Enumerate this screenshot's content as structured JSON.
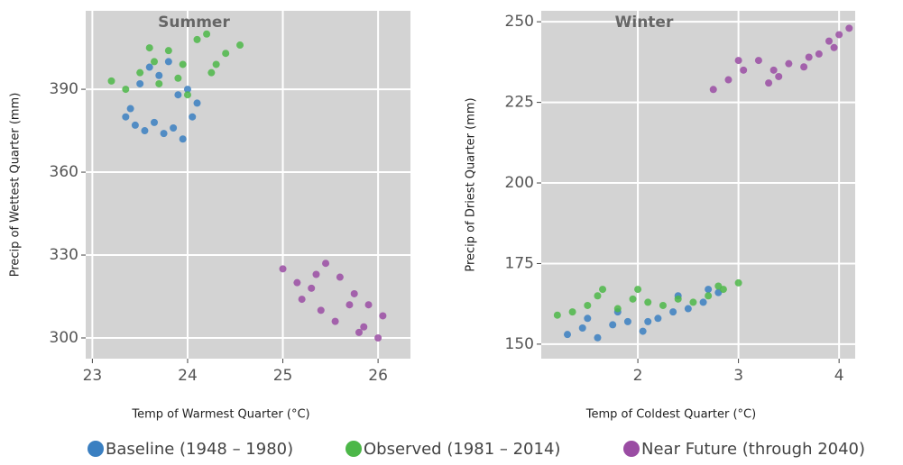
{
  "chart_data": [
    {
      "type": "scatter",
      "title": "Summer",
      "x_label": "Temp of Warmest Quarter (°C)",
      "y_label": "Precip of Wettest Quarter (mm)",
      "xlim": [
        22.93,
        26.34
      ],
      "ylim": [
        292.5,
        418.4
      ],
      "xticks": [
        23,
        24,
        25,
        26
      ],
      "yticks": [
        300,
        330,
        360,
        390
      ],
      "grid": true,
      "series": [
        {
          "name": "Baseline (1948 – 1980)",
          "color": "#3a7fc1",
          "x": [
            23.35,
            23.45,
            23.55,
            23.65,
            23.75,
            23.85,
            23.95,
            24.05,
            23.5,
            23.7,
            23.9,
            24.1,
            23.6,
            23.8,
            23.4,
            24.0
          ],
          "y": [
            380,
            377,
            375,
            378,
            374,
            376,
            372,
            380,
            392,
            395,
            388,
            385,
            398,
            400,
            383,
            390
          ]
        },
        {
          "name": "Observed (1981 – 2014)",
          "color": "#4cb748",
          "x": [
            23.2,
            23.35,
            23.5,
            23.65,
            23.8,
            23.95,
            24.1,
            24.25,
            24.4,
            24.55,
            23.7,
            24.0,
            24.2,
            23.9,
            24.3,
            23.6
          ],
          "y": [
            393,
            390,
            396,
            400,
            404,
            399,
            408,
            396,
            403,
            406,
            392,
            388,
            410,
            394,
            399,
            405
          ]
        },
        {
          "name": "Near Future (through 2040)",
          "color": "#9a4ca3",
          "x": [
            25.0,
            25.15,
            25.3,
            25.45,
            25.6,
            25.75,
            25.9,
            26.05,
            25.2,
            25.4,
            25.55,
            25.7,
            25.85,
            26.0,
            25.35,
            25.8
          ],
          "y": [
            325,
            320,
            318,
            327,
            322,
            316,
            312,
            308,
            314,
            310,
            306,
            312,
            304,
            300,
            323,
            302
          ]
        }
      ]
    },
    {
      "type": "scatter",
      "title": "Winter",
      "x_label": "Temp of Coldest Quarter (°C)",
      "y_label": "Precip of Driest Quarter (mm)",
      "xlim": [
        1.04,
        4.16
      ],
      "ylim": [
        145.5,
        253.4
      ],
      "xticks": [
        2,
        3,
        4
      ],
      "yticks": [
        150,
        175,
        200,
        225,
        250
      ],
      "grid": true,
      "series": [
        {
          "color": "#3a7fc1",
          "x": [
            1.3,
            1.45,
            1.6,
            1.75,
            1.9,
            2.05,
            2.2,
            2.35,
            2.5,
            2.65,
            2.8,
            1.5,
            1.8,
            2.1,
            2.4,
            2.7
          ],
          "y": [
            153,
            155,
            152,
            156,
            157,
            154,
            158,
            160,
            161,
            163,
            166,
            158,
            160,
            157,
            165,
            167
          ]
        },
        {
          "color": "#4cb748",
          "x": [
            1.2,
            1.35,
            1.5,
            1.65,
            1.8,
            1.95,
            2.1,
            2.25,
            2.4,
            2.55,
            2.7,
            2.85,
            3.0,
            1.6,
            2.0,
            2.8
          ],
          "y": [
            159,
            160,
            162,
            167,
            161,
            164,
            163,
            162,
            164,
            163,
            165,
            167,
            169,
            165,
            167,
            168
          ]
        },
        {
          "color": "#9a4ca3",
          "x": [
            2.75,
            2.9,
            3.05,
            3.2,
            3.35,
            3.5,
            3.65,
            3.8,
            3.95,
            4.1,
            3.0,
            3.4,
            3.7,
            4.0,
            3.3,
            3.9
          ],
          "y": [
            229,
            232,
            235,
            238,
            235,
            237,
            236,
            240,
            242,
            248,
            238,
            233,
            239,
            246,
            231,
            244
          ]
        }
      ]
    }
  ]
}
